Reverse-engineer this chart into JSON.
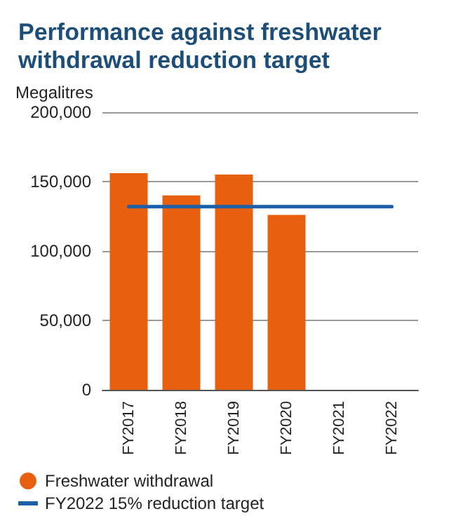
{
  "chart_data": {
    "type": "bar",
    "title": "Performance against freshwater withdrawal reduction target",
    "ylabel": "Megalitres",
    "categories": [
      "FY2017",
      "FY2018",
      "FY2019",
      "FY2020",
      "FY2021",
      "FY2022"
    ],
    "series": [
      {
        "name": "Freshwater withdrawal",
        "color": "#e8600f",
        "values": [
          156000,
          140000,
          155000,
          126000,
          null,
          null
        ]
      },
      {
        "name": "FY2022 15% reduction target",
        "type": "line",
        "color": "#1a5fa8",
        "values": [
          132000,
          132000,
          132000,
          132000,
          132000,
          132000
        ]
      }
    ],
    "ylim": [
      0,
      200000
    ],
    "yticks": [
      0,
      {
        "value": 50000,
        "label": "50,000"
      },
      {
        "value": 100000,
        "label": "100,000"
      },
      {
        "value": 150000,
        "label": "150,000"
      },
      {
        "value": 200000,
        "label": "200,000"
      }
    ],
    "grid": "y",
    "legend": "bottom",
    "marker": "none"
  }
}
